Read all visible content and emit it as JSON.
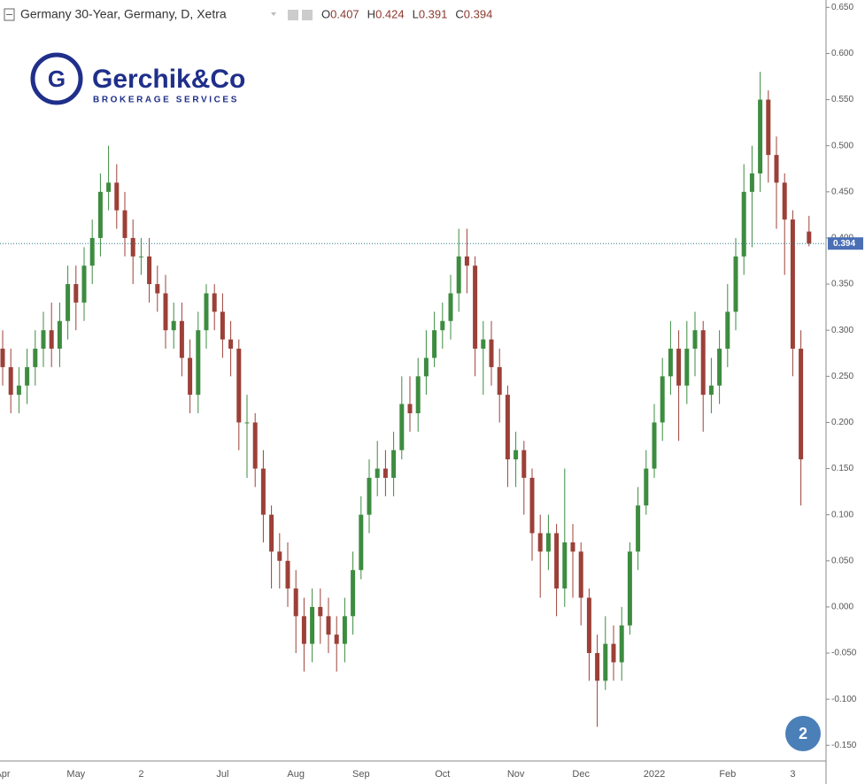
{
  "chart_data": {
    "type": "candlestick",
    "title": "Germany 30-Year, Germany, D, Xetra",
    "ohlc_labels": [
      "O",
      "H",
      "L",
      "C"
    ],
    "logo": "Gerchik&Co",
    "tagline": "BROKERAGE SERVICES",
    "badge": "2",
    "up_color": "#3d8c40",
    "down_color": "#9c4038",
    "last_price_color": "#4a6fb5",
    "grid": false,
    "ylim": [
      -0.167,
      0.658
    ],
    "yticks": [
      {
        "value": 0.65,
        "label": "0.650"
      },
      {
        "value": 0.6,
        "label": "0.600"
      },
      {
        "value": 0.55,
        "label": "0.550"
      },
      {
        "value": 0.5,
        "label": "0.500"
      },
      {
        "value": 0.45,
        "label": "0.450"
      },
      {
        "value": 0.4,
        "label": "0.400"
      },
      {
        "value": 0.35,
        "label": "0.350"
      },
      {
        "value": 0.3,
        "label": "0.300"
      },
      {
        "value": 0.25,
        "label": "0.250"
      },
      {
        "value": 0.2,
        "label": "0.200"
      },
      {
        "value": 0.15,
        "label": "0.150"
      },
      {
        "value": 0.1,
        "label": "0.100"
      },
      {
        "value": 0.05,
        "label": "0.050"
      },
      {
        "value": 0,
        "label": "0.000"
      },
      {
        "value": -0.05,
        "label": "-0.050"
      },
      {
        "value": -0.1,
        "label": "-0.100"
      },
      {
        "value": -0.15,
        "label": "-0.150"
      }
    ],
    "categories": [
      "Apr",
      null,
      null,
      null,
      null,
      null,
      null,
      null,
      null,
      "May",
      null,
      null,
      null,
      null,
      null,
      null,
      null,
      "2",
      null,
      null,
      null,
      null,
      null,
      null,
      null,
      null,
      null,
      "Jul",
      null,
      null,
      null,
      null,
      null,
      null,
      null,
      null,
      "Aug",
      null,
      null,
      null,
      null,
      null,
      null,
      null,
      "Sep",
      null,
      null,
      null,
      null,
      null,
      null,
      null,
      null,
      null,
      "Oct",
      null,
      null,
      null,
      null,
      null,
      null,
      null,
      null,
      "Nov",
      null,
      null,
      null,
      null,
      null,
      null,
      null,
      "Dec",
      null,
      null,
      null,
      null,
      null,
      null,
      null,
      null,
      "2022",
      null,
      null,
      null,
      null,
      null,
      null,
      null,
      null,
      "Feb",
      null,
      null,
      null,
      null,
      null,
      null,
      null,
      "3",
      null,
      null
    ],
    "open": [
      0.28,
      0.26,
      0.23,
      0.24,
      0.26,
      0.28,
      0.3,
      0.28,
      0.31,
      0.35,
      0.33,
      0.37,
      0.4,
      0.45,
      0.46,
      0.43,
      0.4,
      0.38,
      0.38,
      0.35,
      0.34,
      0.3,
      0.31,
      0.27,
      0.23,
      0.3,
      0.34,
      0.32,
      0.29,
      0.28,
      0.2,
      0.2,
      0.15,
      0.1,
      0.06,
      0.05,
      0.02,
      -0.01,
      -0.04,
      0.0,
      -0.01,
      -0.03,
      -0.04,
      -0.01,
      0.04,
      0.1,
      0.14,
      0.15,
      0.14,
      0.17,
      0.22,
      0.21,
      0.25,
      0.27,
      0.3,
      0.31,
      0.34,
      0.38,
      0.37,
      0.28,
      0.29,
      0.26,
      0.23,
      0.16,
      0.17,
      0.14,
      0.08,
      0.06,
      0.08,
      0.02,
      0.07,
      0.06,
      0.01,
      -0.05,
      -0.08,
      -0.04,
      -0.06,
      -0.02,
      0.06,
      0.11,
      0.15,
      0.2,
      0.25,
      0.28,
      0.24,
      0.28,
      0.3,
      0.23,
      0.24,
      0.28,
      0.32,
      0.38,
      0.45,
      0.47,
      0.55,
      0.49,
      0.46,
      0.42,
      0.28,
      0.407
    ],
    "high": [
      0.3,
      0.28,
      0.26,
      0.28,
      0.3,
      0.32,
      0.33,
      0.33,
      0.37,
      0.37,
      0.39,
      0.42,
      0.47,
      0.5,
      0.48,
      0.45,
      0.42,
      0.4,
      0.4,
      0.37,
      0.36,
      0.33,
      0.33,
      0.29,
      0.32,
      0.35,
      0.35,
      0.34,
      0.31,
      0.29,
      0.23,
      0.21,
      0.17,
      0.11,
      0.08,
      0.07,
      0.04,
      0.01,
      0.02,
      0.02,
      0.01,
      -0.01,
      0.01,
      0.06,
      0.12,
      0.16,
      0.18,
      0.17,
      0.19,
      0.25,
      0.25,
      0.27,
      0.3,
      0.32,
      0.33,
      0.36,
      0.41,
      0.41,
      0.38,
      0.31,
      0.31,
      0.28,
      0.24,
      0.19,
      0.18,
      0.15,
      0.1,
      0.1,
      0.09,
      0.15,
      0.09,
      0.07,
      0.02,
      -0.03,
      -0.01,
      -0.02,
      0.0,
      0.07,
      0.13,
      0.17,
      0.22,
      0.27,
      0.31,
      0.3,
      0.31,
      0.32,
      0.31,
      0.27,
      0.3,
      0.35,
      0.4,
      0.48,
      0.5,
      0.58,
      0.56,
      0.51,
      0.47,
      0.43,
      0.3,
      0.424
    ],
    "low": [
      0.24,
      0.21,
      0.21,
      0.22,
      0.24,
      0.26,
      0.26,
      0.26,
      0.29,
      0.3,
      0.31,
      0.35,
      0.38,
      0.43,
      0.41,
      0.38,
      0.35,
      0.36,
      0.33,
      0.32,
      0.28,
      0.28,
      0.25,
      0.21,
      0.21,
      0.28,
      0.3,
      0.27,
      0.25,
      0.17,
      0.14,
      0.13,
      0.07,
      0.02,
      0.02,
      0.0,
      -0.05,
      -0.07,
      -0.06,
      -0.04,
      -0.05,
      -0.07,
      -0.06,
      -0.03,
      0.03,
      0.08,
      0.12,
      0.12,
      0.12,
      0.16,
      0.19,
      0.19,
      0.23,
      0.26,
      0.28,
      0.29,
      0.32,
      0.34,
      0.25,
      0.23,
      0.24,
      0.2,
      0.13,
      0.13,
      0.1,
      0.05,
      0.01,
      0.04,
      -0.01,
      0.0,
      0.01,
      -0.02,
      -0.08,
      -0.13,
      -0.09,
      -0.08,
      -0.08,
      -0.03,
      0.04,
      0.1,
      0.14,
      0.18,
      0.23,
      0.18,
      0.22,
      0.25,
      0.19,
      0.21,
      0.22,
      0.26,
      0.3,
      0.36,
      0.39,
      0.45,
      0.46,
      0.41,
      0.36,
      0.25,
      0.11,
      0.391
    ],
    "close": [
      0.26,
      0.23,
      0.24,
      0.26,
      0.28,
      0.3,
      0.28,
      0.31,
      0.35,
      0.33,
      0.37,
      0.4,
      0.45,
      0.46,
      0.43,
      0.4,
      0.38,
      0.38,
      0.35,
      0.34,
      0.3,
      0.31,
      0.27,
      0.23,
      0.3,
      0.34,
      0.32,
      0.29,
      0.28,
      0.2,
      0.2,
      0.15,
      0.1,
      0.06,
      0.05,
      0.02,
      -0.01,
      -0.04,
      0.0,
      -0.01,
      -0.03,
      -0.04,
      -0.01,
      0.04,
      0.1,
      0.14,
      0.15,
      0.14,
      0.17,
      0.22,
      0.21,
      0.25,
      0.27,
      0.3,
      0.31,
      0.34,
      0.38,
      0.37,
      0.28,
      0.29,
      0.26,
      0.23,
      0.16,
      0.17,
      0.14,
      0.08,
      0.06,
      0.08,
      0.02,
      0.07,
      0.06,
      0.01,
      -0.05,
      -0.08,
      -0.04,
      -0.06,
      -0.02,
      0.06,
      0.11,
      0.15,
      0.2,
      0.25,
      0.28,
      0.24,
      0.28,
      0.3,
      0.23,
      0.24,
      0.28,
      0.32,
      0.38,
      0.45,
      0.47,
      0.55,
      0.49,
      0.46,
      0.42,
      0.28,
      0.16,
      0.394
    ]
  }
}
